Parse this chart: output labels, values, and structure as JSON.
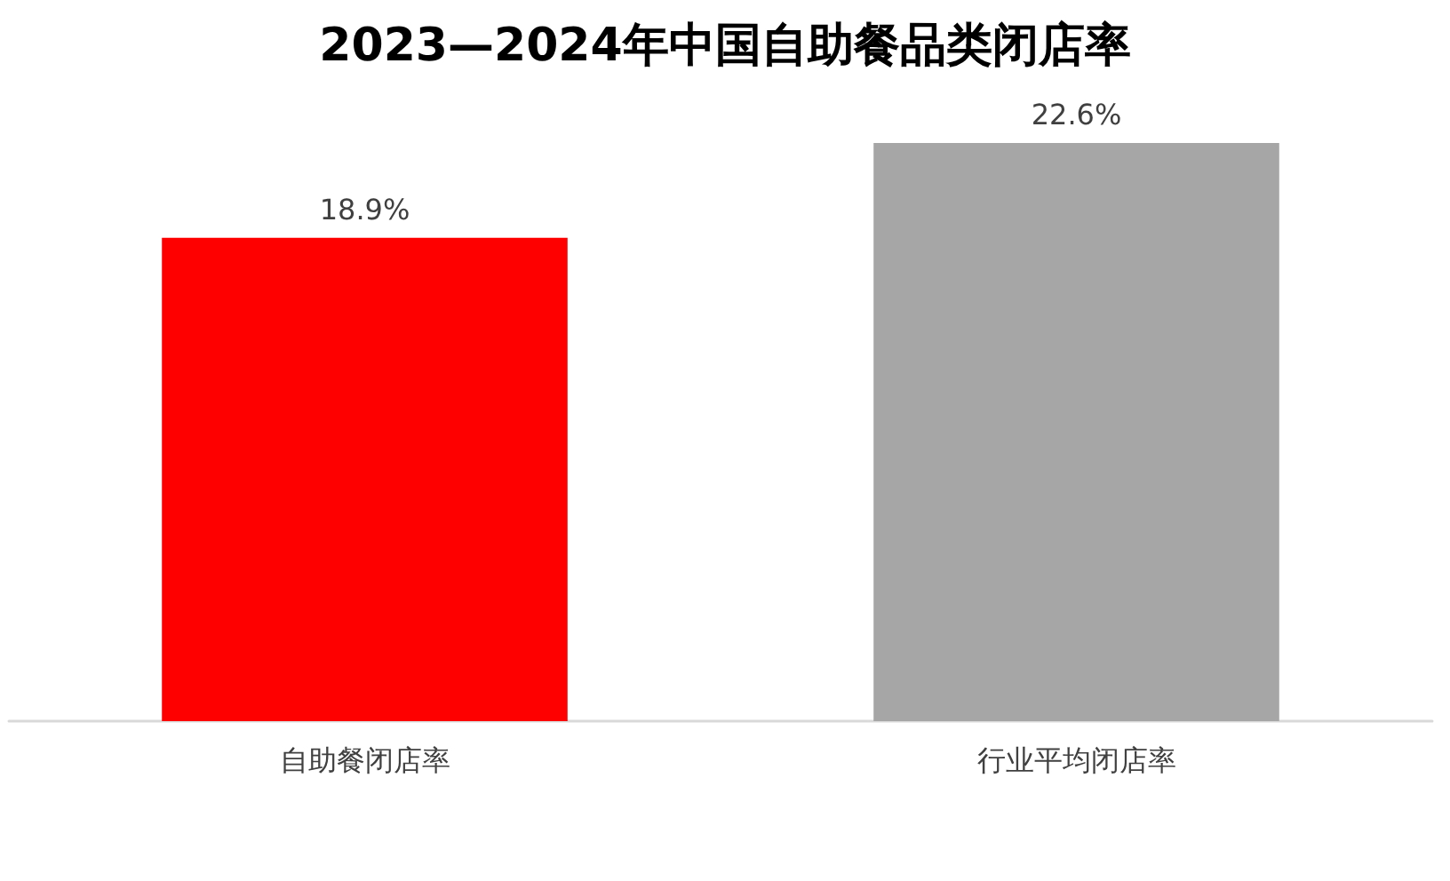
{
  "chart_data": {
    "type": "bar",
    "title": "2023—2024年中国自助餐品类闭店率",
    "categories": [
      "自助餐闭店率",
      "行业平均闭店率"
    ],
    "values": [
      18.9,
      22.6
    ],
    "colors": [
      "#ff0000",
      "#a6a6a6"
    ],
    "value_labels": [
      "18.9%",
      "22.6%"
    ],
    "grid": false
  }
}
